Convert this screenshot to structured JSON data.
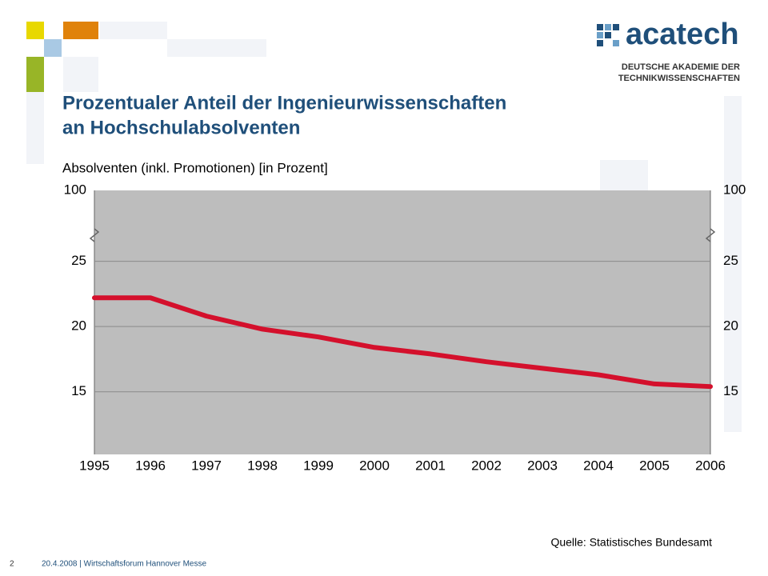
{
  "slide": {
    "logo": "acatech",
    "logo_sub1": "DEUTSCHE AKADEMIE DER",
    "logo_sub2": "TECHNIKWISSENSCHAFTEN",
    "page_number": "2",
    "footer": "20.4.2008 | Wirtschaftsforum Hannover Messe"
  },
  "chart_data": {
    "type": "line",
    "title": [
      "Prozentualer Anteil der Ingenieurwissenschaften",
      "an Hochschulabsolventen"
    ],
    "y_label": "Absolventen (inkl. Promotionen) [in Prozent]",
    "source": "Quelle: Statistisches Bundesamt",
    "categories": [
      "1995",
      "1996",
      "1997",
      "1998",
      "1999",
      "2000",
      "2001",
      "2002",
      "2003",
      "2004",
      "2005",
      "2006"
    ],
    "series": [
      {
        "color": "#d4102c",
        "values": [
          22.2,
          22.2,
          20.8,
          19.8,
          19.2,
          18.4,
          17.9,
          17.3,
          16.8,
          16.3,
          15.6,
          15.4
        ]
      }
    ],
    "ylim": [
      10.2,
      100
    ],
    "yticks": [
      15,
      20,
      25,
      100
    ],
    "y2lim": [
      10.2,
      100
    ],
    "y2ticks": [
      15,
      20,
      25,
      100
    ],
    "axis_break": [
      27,
      100
    ],
    "grid": true
  }
}
